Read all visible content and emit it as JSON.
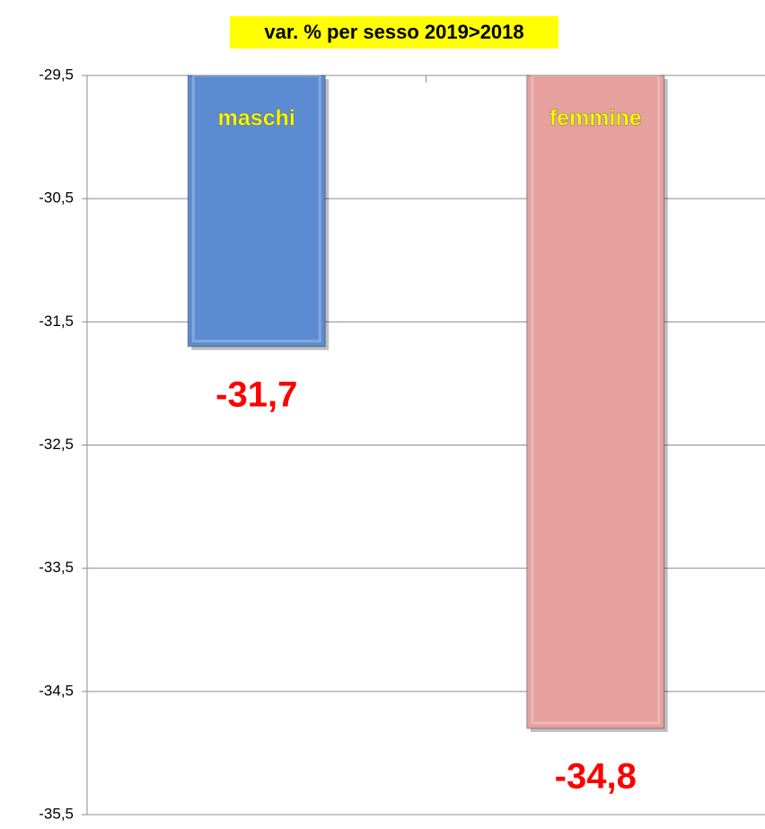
{
  "chart_data": {
    "type": "bar",
    "title": "var. % per sesso 2019>2018",
    "categories": [
      "maschi",
      "femmine"
    ],
    "values": [
      -31.7,
      -34.8
    ],
    "value_labels": [
      "-31,7",
      "-34,8"
    ],
    "colors": [
      "#5b8bd0",
      "#e6a09e"
    ],
    "ylim": [
      -35.5,
      -29.5
    ],
    "yticks": [
      {
        "value": -29.5,
        "label": "-29,5"
      },
      {
        "value": -30.5,
        "label": "-30,5"
      },
      {
        "value": -31.5,
        "label": "-31,5"
      },
      {
        "value": -32.5,
        "label": "-32,5"
      },
      {
        "value": -33.5,
        "label": "-33,5"
      },
      {
        "value": -34.5,
        "label": "-34,5"
      },
      {
        "value": -35.5,
        "label": "-35,5"
      }
    ],
    "grid": true
  }
}
